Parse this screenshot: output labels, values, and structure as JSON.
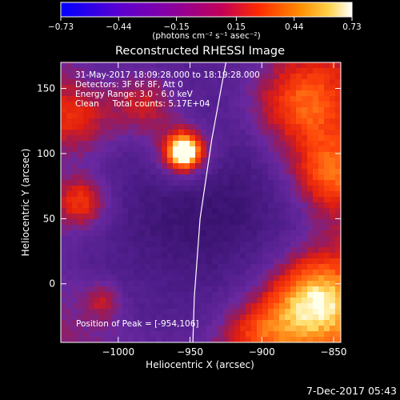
{
  "chart_data": {
    "type": "heatmap",
    "title": "Reconstructed RHESSI Image",
    "xlabel": "Heliocentric X (arcsec)",
    "ylabel": "Heliocentric Y (arcsec)",
    "xlim": [
      -1040,
      -845
    ],
    "ylim": [
      -45,
      170
    ],
    "x_ticks": [
      -1000,
      -950,
      -900,
      -850
    ],
    "x_tick_labels": [
      "−1000",
      "−950",
      "−900",
      "−850"
    ],
    "y_ticks": [
      0,
      50,
      100,
      150
    ],
    "y_tick_labels": [
      "0",
      "50",
      "100",
      "150"
    ],
    "colorbar": {
      "range": [
        -0.73,
        0.73
      ],
      "tick_values": [
        -0.73,
        -0.44,
        -0.15,
        0.15,
        0.44,
        0.73
      ],
      "tick_labels": [
        "−0.73",
        "−0.44",
        "−0.15",
        "0.15",
        "0.44",
        "0.73"
      ],
      "units_label": "(photons cm⁻² s⁻¹ asec⁻²)"
    },
    "annotations": [
      "31-May-2017 18:09:28.000 to 18:19:28.000",
      "Detectors: 3F 6F 8F, Att 0",
      "Energy Range: 3.0 - 6.0 keV",
      "Clean     Total counts: 5.17E+04"
    ],
    "peak_label": "Position of Peak = [-954,106]",
    "peak": {
      "x": -954,
      "y": 106
    },
    "limb_curve": [
      [
        -925,
        170
      ],
      [
        -930,
        140
      ],
      [
        -935,
        110
      ],
      [
        -939,
        80
      ],
      [
        -943,
        50
      ],
      [
        -945,
        20
      ],
      [
        -947,
        -10
      ],
      [
        -948,
        -45
      ]
    ],
    "timestamp": "7-Dec-2017 05:43"
  },
  "colors": {
    "background": "#000000",
    "text": "#ffffff",
    "colormap": [
      "#0000ff",
      "#3a10b0",
      "#5a1c8c",
      "#6a2aa0",
      "#8a1a70",
      "#c01818",
      "#ff4a10",
      "#ff9a20",
      "#ffd860",
      "#ffffe8"
    ]
  }
}
